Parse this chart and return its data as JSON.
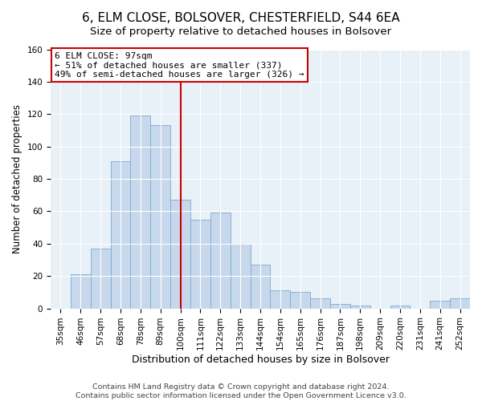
{
  "title": "6, ELM CLOSE, BOLSOVER, CHESTERFIELD, S44 6EA",
  "subtitle": "Size of property relative to detached houses in Bolsover",
  "xlabel": "Distribution of detached houses by size in Bolsover",
  "ylabel": "Number of detached properties",
  "bar_labels": [
    "35sqm",
    "46sqm",
    "57sqm",
    "68sqm",
    "78sqm",
    "89sqm",
    "100sqm",
    "111sqm",
    "122sqm",
    "133sqm",
    "144sqm",
    "154sqm",
    "165sqm",
    "176sqm",
    "187sqm",
    "198sqm",
    "209sqm",
    "220sqm",
    "231sqm",
    "241sqm",
    "252sqm"
  ],
  "bar_values": [
    0,
    21,
    37,
    91,
    119,
    113,
    67,
    55,
    59,
    40,
    27,
    11,
    10,
    6,
    3,
    2,
    0,
    2,
    0,
    5,
    6
  ],
  "bar_color": "#c8d8ec",
  "bar_edge_color": "#7aaad0",
  "vline_x": 6,
  "vline_color": "#cc0000",
  "annotation_box_text": "6 ELM CLOSE: 97sqm\n← 51% of detached houses are smaller (337)\n49% of semi-detached houses are larger (326) →",
  "box_edge_color": "#cc0000",
  "ylim": [
    0,
    160
  ],
  "yticks": [
    0,
    20,
    40,
    60,
    80,
    100,
    120,
    140,
    160
  ],
  "footer1": "Contains HM Land Registry data © Crown copyright and database right 2024.",
  "footer2": "Contains public sector information licensed under the Open Government Licence v3.0.",
  "background_color": "#e8f0f8",
  "fig_background_color": "#ffffff",
  "title_fontsize": 11,
  "subtitle_fontsize": 9.5,
  "xlabel_fontsize": 9,
  "ylabel_fontsize": 8.5,
  "tick_fontsize": 7.5,
  "footer_fontsize": 6.8,
  "annotation_fontsize": 8
}
